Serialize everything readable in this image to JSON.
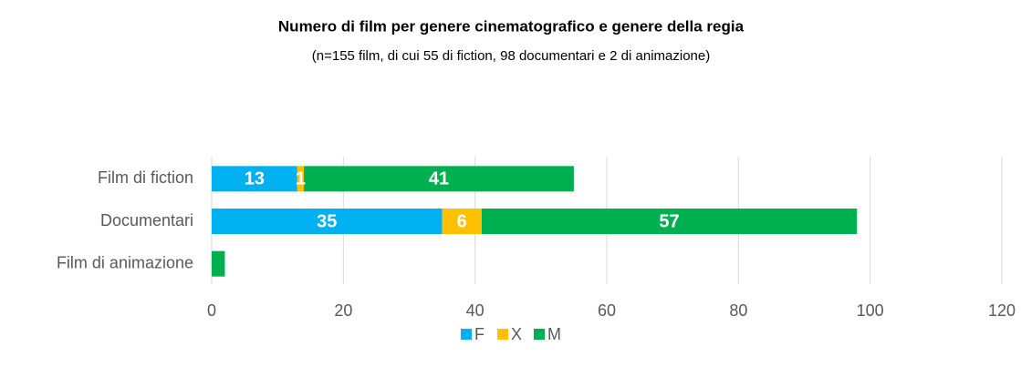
{
  "chart_data": {
    "type": "stacked_barh",
    "title": "Numero di film per genere cinematografico e genere della regia",
    "subtitle": "(n=155 film, di cui 55 di fiction, 98 documentari e 2 di animazione)",
    "categories": [
      "Film di fiction",
      "Documentari",
      "Film di animazione"
    ],
    "series": [
      {
        "name": "F",
        "color": "#00b0f0",
        "values": [
          13,
          35,
          0
        ],
        "value_labels": [
          "13",
          "35",
          null
        ]
      },
      {
        "name": "X",
        "color": "#ffc000",
        "values": [
          1,
          6,
          0
        ],
        "value_labels": [
          "1",
          "6",
          null
        ]
      },
      {
        "name": "M",
        "color": "#00b050",
        "values": [
          41,
          57,
          2
        ],
        "value_labels": [
          "41",
          "57",
          null
        ]
      }
    ],
    "xlim": [
      0,
      120
    ],
    "xticks": [
      0,
      20,
      40,
      60,
      80,
      100,
      120
    ],
    "grid": true,
    "legend": "bottom"
  }
}
